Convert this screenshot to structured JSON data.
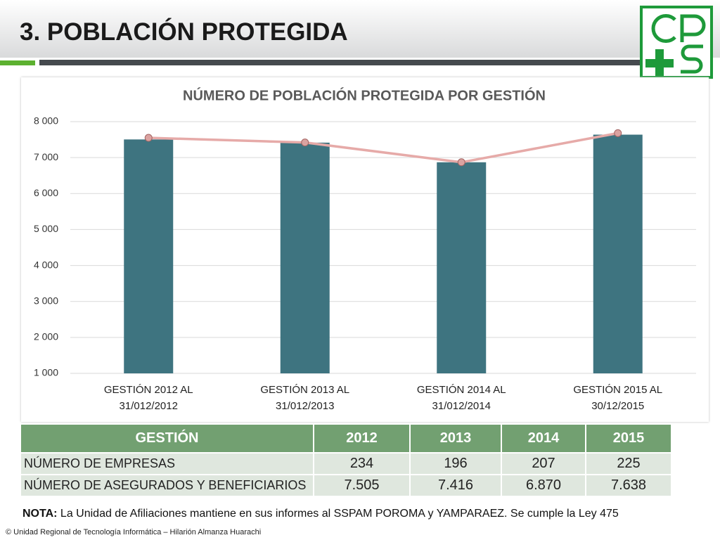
{
  "header": {
    "title": "3. POBLACIÓN PROTEGIDA"
  },
  "chart_data": {
    "type": "bar",
    "title": "NÚMERO DE POBLACIÓN PROTEGIDA POR GESTIÓN",
    "categories": [
      "GESTIÓN 2012 AL\n31/012/2012",
      "GESTIÓN 2013 AL\n31/012/2013",
      "GESTIÓN 2014 AL\n31/012/2014",
      "GESTIÓN 2015 AL\n30/12/2015"
    ],
    "series": [
      {
        "type": "bar",
        "color": "#3e7480",
        "values": [
          7505,
          7416,
          6870,
          7638
        ]
      },
      {
        "type": "line",
        "color": "#e6aaa8",
        "values": [
          7550,
          7420,
          6870,
          7680
        ]
      }
    ],
    "ylim": [
      1000,
      8000
    ],
    "yticks": [
      {
        "value": 1000,
        "label": "1 000"
      },
      {
        "value": 2000,
        "label": "2 000"
      },
      {
        "value": 3000,
        "label": "3 000"
      },
      {
        "value": 4000,
        "label": "4 000"
      },
      {
        "value": 5000,
        "label": "5 000"
      },
      {
        "value": 6000,
        "label": "6 000"
      },
      {
        "value": 7000,
        "label": "7 000"
      },
      {
        "value": 8000,
        "label": "8 000"
      }
    ],
    "grid": true
  },
  "table": {
    "header": [
      "GESTIÓN",
      "2012",
      "2013",
      "2014",
      "2015"
    ],
    "rows": [
      [
        "NÚMERO DE EMPRESAS",
        "234",
        "196",
        "207",
        "225"
      ],
      [
        "NÚMERO DE ASEGURADOS Y BENEFICIARIOS",
        "7.505",
        "7.416",
        "6.870",
        "7.638"
      ]
    ]
  },
  "note": {
    "label": "NOTA:",
    "text": " La Unidad de Afiliaciones mantiene en sus informes al SSPAM POROMA y YAMPARAEZ. Se cumple la Ley 475"
  },
  "footer": {
    "text": "© Unidad Regional de Tecnología Informática – Hilarión Almanza Huarachi"
  }
}
